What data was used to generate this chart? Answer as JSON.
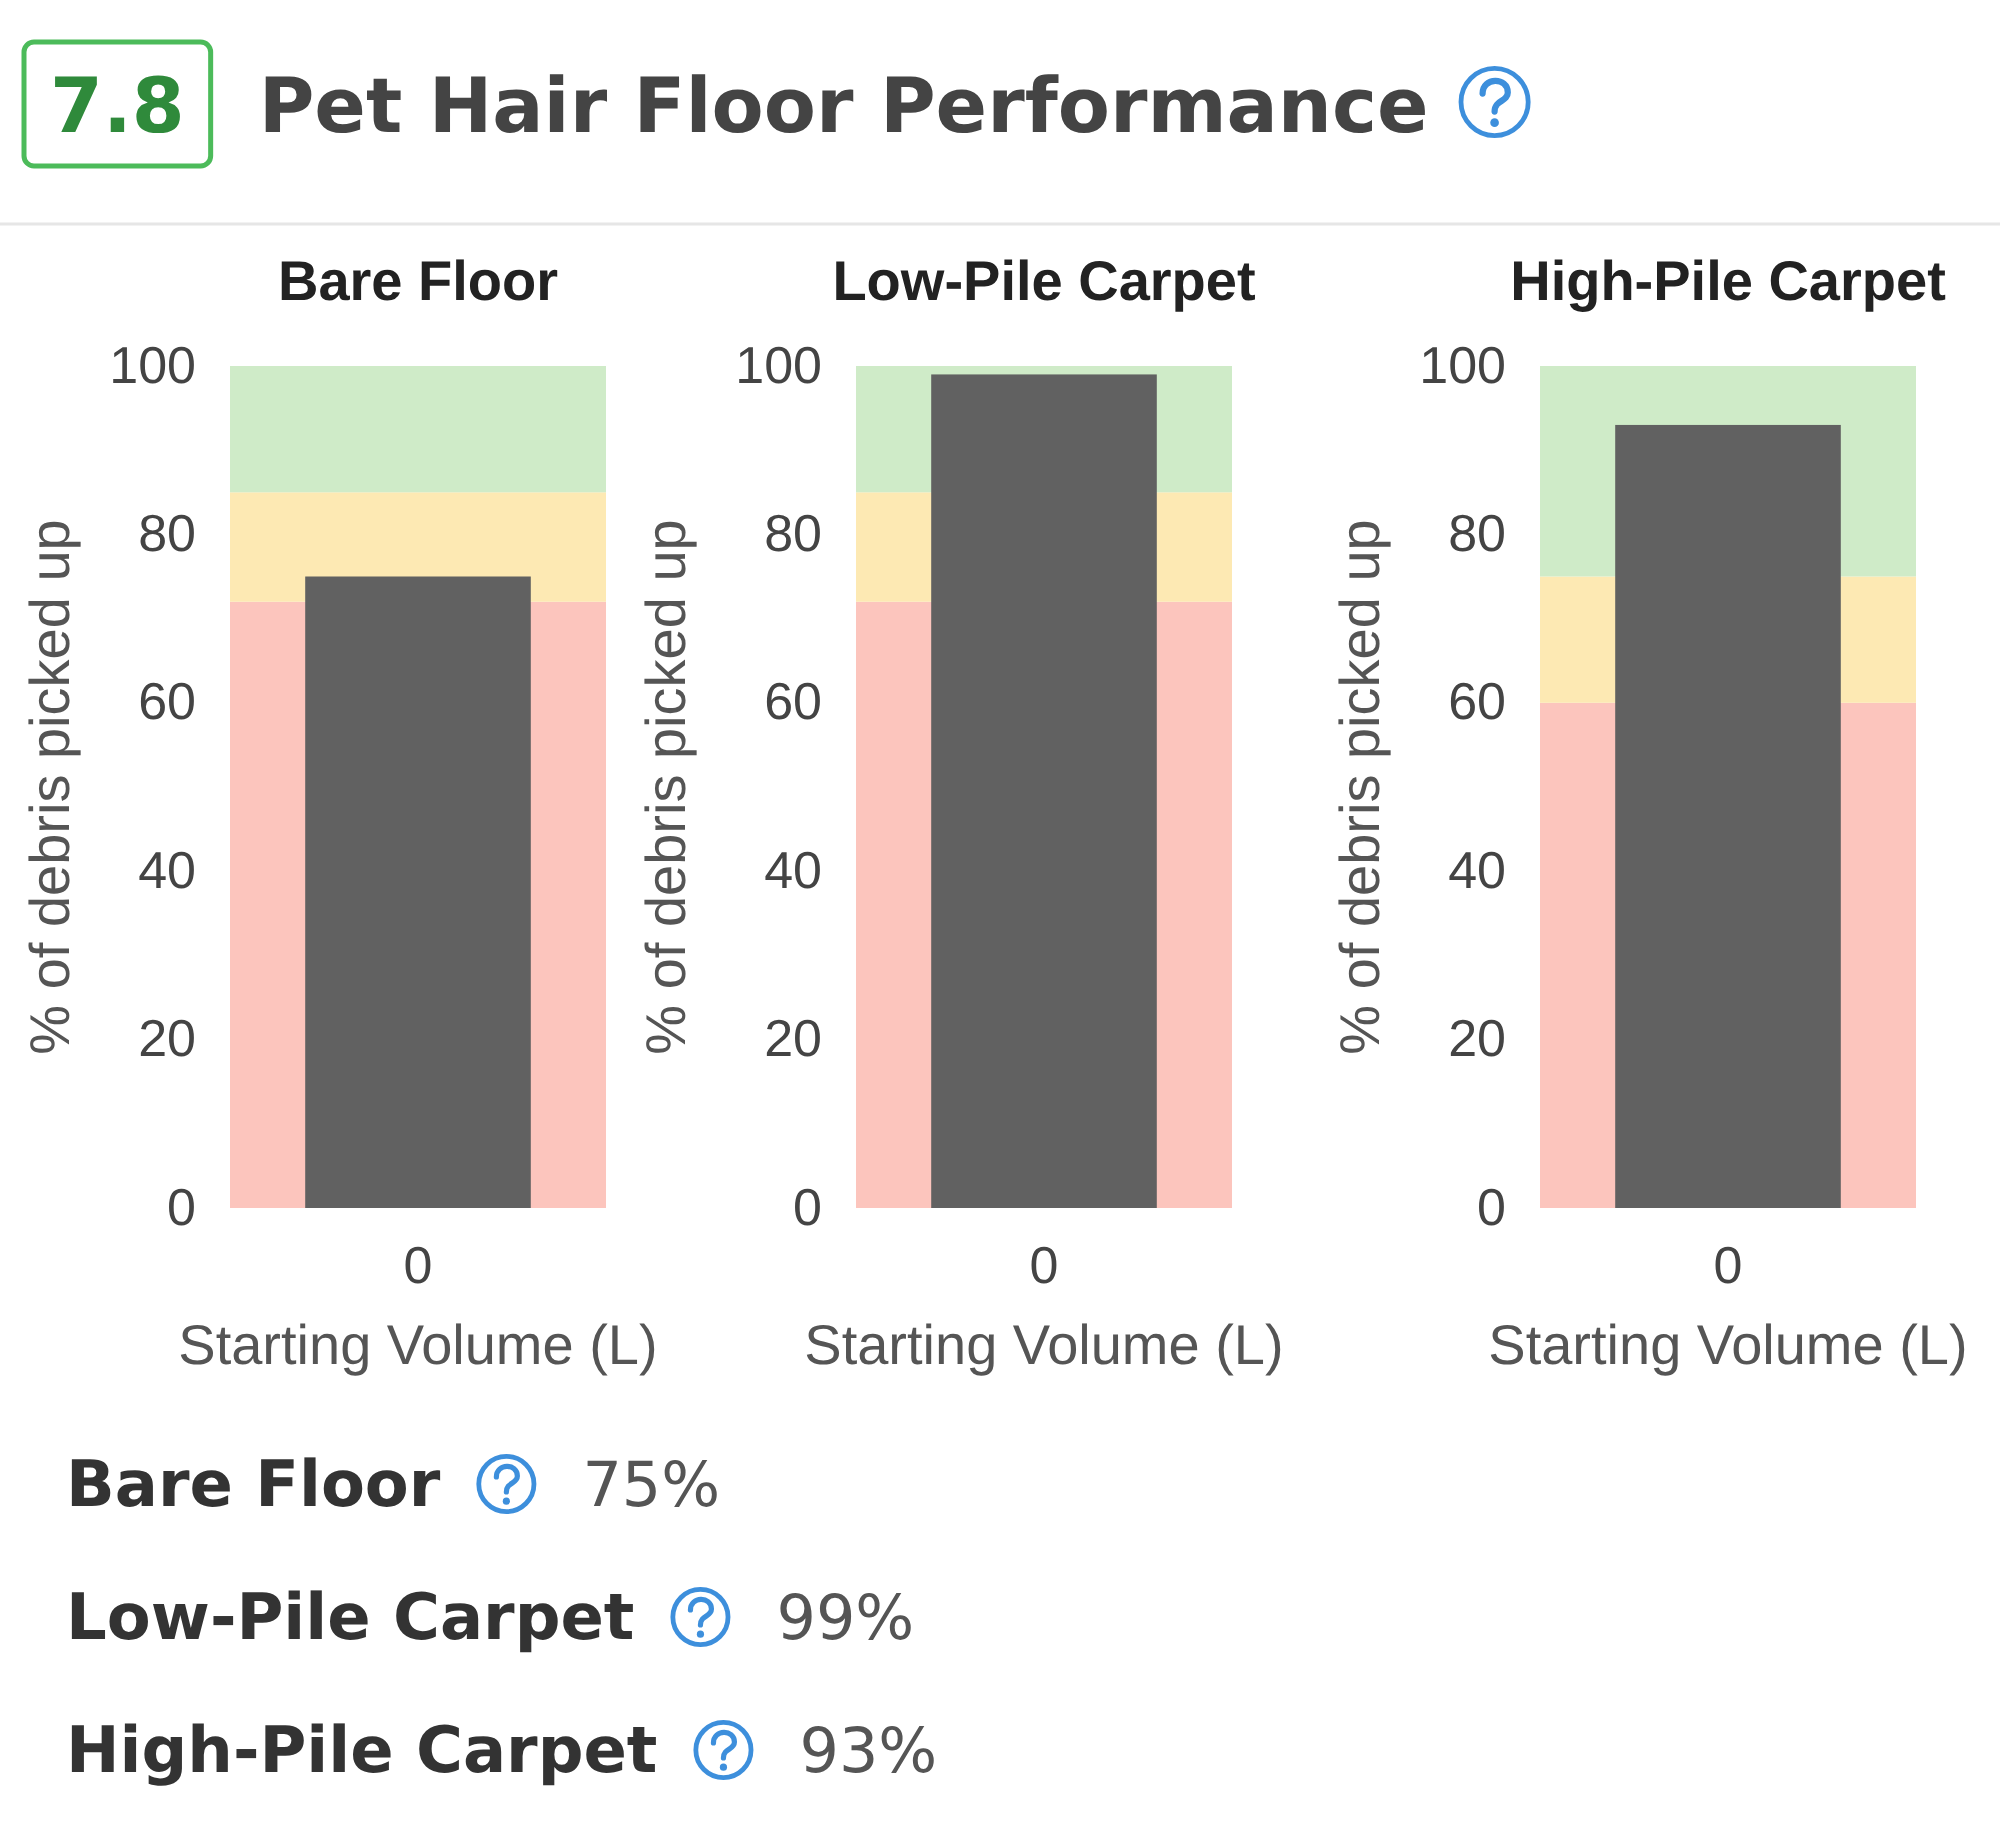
{
  "chart_data": [
    {
      "type": "other",
      "title": "Pet Hair Floor Performance",
      "annotations": [
        "7.8"
      ]
    },
    {
      "type": "bar",
      "title": "Bare Floor",
      "categories": [
        "0"
      ],
      "values": [
        75
      ],
      "color": "#616161",
      "xlabel": "Starting Volume (L)",
      "ylabel": "% of debris picked up",
      "ylim": [
        0,
        100
      ],
      "yticks": [
        0,
        20,
        40,
        60,
        80,
        100
      ],
      "bands": [
        {
          "axis": "y",
          "from": 0,
          "to": 72,
          "color": "#fcc5bd"
        },
        {
          "axis": "y",
          "from": 72,
          "to": 85,
          "color": "#fde9b3"
        },
        {
          "axis": "y",
          "from": 85,
          "to": 100,
          "color": "#cfebc8"
        }
      ]
    },
    {
      "type": "bar",
      "title": "Low-Pile Carpet",
      "categories": [
        "0"
      ],
      "values": [
        99
      ],
      "color": "#616161",
      "xlabel": "Starting Volume (L)",
      "ylabel": "% of debris picked up",
      "ylim": [
        0,
        100
      ],
      "yticks": [
        0,
        20,
        40,
        60,
        80,
        100
      ],
      "bands": [
        {
          "axis": "y",
          "from": 0,
          "to": 72,
          "color": "#fcc5bd"
        },
        {
          "axis": "y",
          "from": 72,
          "to": 85,
          "color": "#fde9b3"
        },
        {
          "axis": "y",
          "from": 85,
          "to": 100,
          "color": "#cfebc8"
        }
      ]
    },
    {
      "type": "bar",
      "title": "High-Pile Carpet",
      "categories": [
        "0"
      ],
      "values": [
        93
      ],
      "color": "#616161",
      "xlabel": "Starting Volume (L)",
      "ylabel": "% of debris picked up",
      "ylim": [
        0,
        100
      ],
      "yticks": [
        0,
        20,
        40,
        60,
        80,
        100
      ],
      "bands": [
        {
          "axis": "y",
          "from": 0,
          "to": 60,
          "color": "#fcc5bd"
        },
        {
          "axis": "y",
          "from": 60,
          "to": 75,
          "color": "#fde9b3"
        },
        {
          "axis": "y",
          "from": 75,
          "to": 100,
          "color": "#cfebc8"
        }
      ]
    },
    {
      "type": "other",
      "annotations": [
        "Bare Floor",
        "75%",
        "Low-Pile Carpet",
        "99%",
        "High-Pile Carpet",
        "93%"
      ]
    }
  ]
}
